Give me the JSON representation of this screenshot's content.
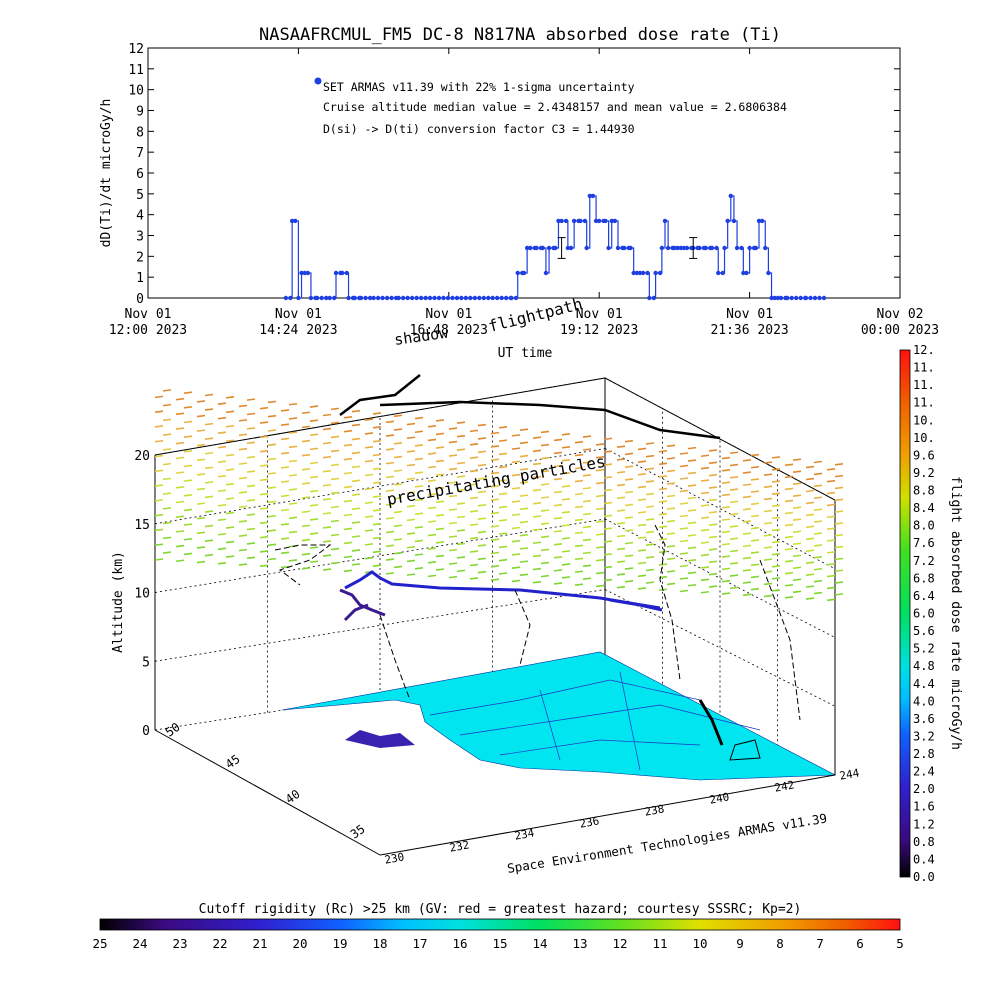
{
  "chart_data": [
    {
      "type": "line",
      "title": "NASAAFRCMUL_FM5 DC-8   N817NA absorbed dose rate (Ti)",
      "ylabel": "dD(Ti)/dt microGy/h",
      "xlabel": "UT time",
      "ylim": [
        0,
        12
      ],
      "yticks": [
        "0",
        "1",
        "2",
        "3",
        "4",
        "5",
        "6",
        "7",
        "8",
        "9",
        "10",
        "11",
        "12"
      ],
      "x_ticks_hours": [
        12.0,
        14.4,
        16.8,
        19.2,
        21.6,
        24.0
      ],
      "x_tick_labels": [
        [
          "Nov 01",
          "12:00 2023"
        ],
        [
          "Nov 01",
          "14:24 2023"
        ],
        [
          "Nov 01",
          "16:48 2023"
        ],
        [
          "Nov 01",
          "19:12 2023"
        ],
        [
          "Nov 01",
          "21:36 2023"
        ],
        [
          "Nov 02",
          "00:00 2023"
        ]
      ],
      "xlim_hours": [
        12.0,
        24.0
      ],
      "legend": {
        "marker_label": "SET ARMAS v11.39 with 22% 1-sigma uncertainty",
        "line2": "Cruise altitude median value = 2.4348157 and mean value = 2.6806384",
        "line3": "D(si) -> D(ti) conversion factor C3 = 1.44930",
        "marker_color": "#1f3fe0"
      },
      "series_color": "#1f3fe0",
      "x": [
        14.2,
        14.3,
        14.35,
        14.4,
        14.45,
        14.5,
        14.55,
        14.6,
        14.7,
        14.9,
        15.0,
        15.1,
        15.2,
        15.3,
        15.4,
        15.6,
        16.0,
        16.5,
        17.0,
        17.5,
        17.8,
        17.9,
        18.0,
        18.05,
        18.1,
        18.2,
        18.3,
        18.35,
        18.4,
        18.5,
        18.55,
        18.6,
        18.7,
        18.75,
        18.8,
        18.9,
        19.0,
        19.05,
        19.1,
        19.15,
        19.2,
        19.3,
        19.35,
        19.4,
        19.45,
        19.5,
        19.6,
        19.7,
        19.75,
        19.8,
        19.85,
        19.9,
        20.0,
        20.1,
        20.2,
        20.25,
        20.3,
        20.4,
        20.45,
        20.5,
        20.55,
        20.6,
        20.7,
        20.8,
        20.9,
        21.0,
        21.1,
        21.2,
        21.25,
        21.3,
        21.35,
        21.4,
        21.5,
        21.55,
        21.6,
        21.7,
        21.75,
        21.8,
        21.85,
        21.9,
        21.95,
        22.0,
        22.05,
        22.1,
        22.2,
        22.5,
        22.8
      ],
      "values": [
        0,
        3.7,
        3.7,
        0,
        1.2,
        1.2,
        1.2,
        0,
        0,
        0,
        1.2,
        1.2,
        0,
        0,
        0,
        0,
        0,
        0,
        0,
        0,
        0,
        1.2,
        1.2,
        2.4,
        2.4,
        2.4,
        2.4,
        1.2,
        2.4,
        2.4,
        3.7,
        3.7,
        2.4,
        2.4,
        3.7,
        3.7,
        2.4,
        4.9,
        4.9,
        3.7,
        3.7,
        3.7,
        2.4,
        3.7,
        3.7,
        2.4,
        2.4,
        2.4,
        1.2,
        1.2,
        1.2,
        1.2,
        0,
        1.2,
        2.4,
        3.7,
        2.4,
        2.4,
        2.4,
        2.4,
        2.4,
        2.4,
        2.4,
        2.4,
        2.4,
        2.4,
        1.2,
        2.4,
        3.7,
        4.9,
        3.7,
        2.4,
        1.2,
        1.2,
        2.4,
        2.4,
        3.7,
        3.7,
        2.4,
        1.2,
        0,
        0,
        0,
        0,
        0,
        0,
        0
      ],
      "error_bars": [
        {
          "x": 18.6,
          "y": 2.4,
          "err": 0.5
        },
        {
          "x": 20.7,
          "y": 2.4,
          "err": 0.5
        }
      ]
    },
    {
      "type": "scatter",
      "subtype": "3d flight visualization",
      "zlabel": "Altitude (km)",
      "zticks": [
        "0",
        "5",
        "10",
        "15",
        "20"
      ],
      "lat_ticks": [
        "35",
        "40",
        "45",
        "50"
      ],
      "lon_ticks": [
        "230",
        "232",
        "234",
        "236",
        "238",
        "240",
        "242",
        "244"
      ],
      "scene_labels": {
        "flightpath": "flightpath",
        "shadow": "shadow",
        "precipitating": "precipitating particles",
        "credit": "Space Environment Technologies ARMAS v11.39"
      },
      "colorbar": {
        "label": "flight absorbed dose rate microGy/h",
        "ticks": [
          "0.0",
          "0.4",
          "0.8",
          "1.2",
          "1.6",
          "2.0",
          "2.4",
          "2.8",
          "3.2",
          "3.6",
          "4.0",
          "4.4",
          "4.8",
          "5.2",
          "5.6",
          "6.0",
          "6.4",
          "6.8",
          "7.2",
          "7.6",
          "8.0",
          "8.4",
          "8.8",
          "9.2",
          "9.6",
          "10.",
          "10.",
          "11.",
          "11.",
          "11.",
          "12."
        ]
      },
      "bottom_colorbar": {
        "label": "Cutoff rigidity (Rc) >25 km (GV: red = greatest hazard; courtesy SSSRC; Kp=2)",
        "ticks": [
          "25",
          "24",
          "23",
          "22",
          "21",
          "20",
          "19",
          "18",
          "17",
          "16",
          "15",
          "14",
          "13",
          "12",
          "11",
          "10",
          "9",
          "8",
          "7",
          "6",
          "5"
        ]
      },
      "colors": {
        "land": "#00e5f0",
        "track": "#2222cc",
        "ground_track": "#000000"
      }
    }
  ]
}
